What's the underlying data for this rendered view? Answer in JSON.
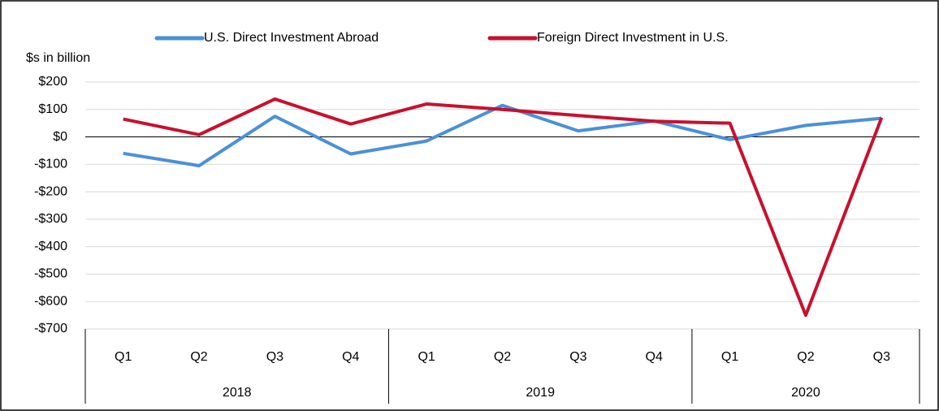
{
  "chart_data": {
    "type": "line",
    "y_axis_label": "$s in billion",
    "categories": [
      "Q1",
      "Q2",
      "Q3",
      "Q4",
      "Q1",
      "Q2",
      "Q3",
      "Q4",
      "Q1",
      "Q2",
      "Q3"
    ],
    "year_groups": [
      {
        "label": "2018",
        "count": 4
      },
      {
        "label": "2019",
        "count": 4
      },
      {
        "label": "2020",
        "count": 3
      }
    ],
    "series": [
      {
        "name": "U.S. Direct Investment Abroad",
        "color": "#4a90d9",
        "values": [
          -60,
          -105,
          75,
          -62,
          -15,
          115,
          22,
          58,
          -10,
          42,
          68
        ]
      },
      {
        "name": "Foreign Direct Investment in U.S.",
        "color": "#c8102e",
        "values": [
          65,
          8,
          138,
          47,
          120,
          100,
          78,
          57,
          50,
          -650,
          70
        ]
      }
    ],
    "ylim": [
      -700,
      200
    ],
    "yticks": [
      {
        "value": 200,
        "label": "$200"
      },
      {
        "value": 100,
        "label": "$100"
      },
      {
        "value": 0,
        "label": "$0"
      },
      {
        "value": -100,
        "label": "-$100"
      },
      {
        "value": -200,
        "label": "-$200"
      },
      {
        "value": -300,
        "label": "-$300"
      },
      {
        "value": -400,
        "label": "-$400"
      },
      {
        "value": -500,
        "label": "-$500"
      },
      {
        "value": -600,
        "label": "-$600"
      },
      {
        "value": -700,
        "label": "-$700"
      }
    ],
    "grid": true
  }
}
